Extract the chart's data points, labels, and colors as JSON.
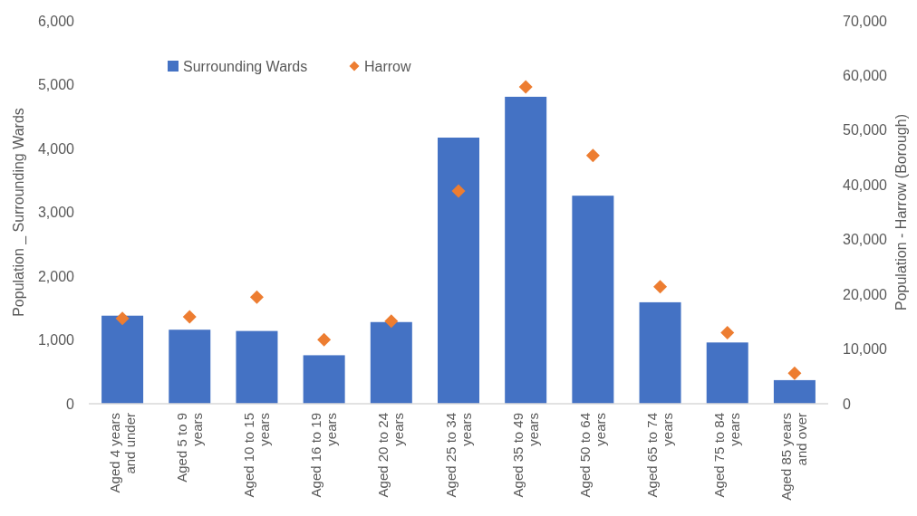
{
  "chart_data": {
    "type": "bar",
    "categories": [
      "Aged 4 years and under",
      "Aged 5 to 9 years",
      "Aged 10 to 15 years",
      "Aged 16 to 19 years",
      "Aged 20 to 24 years",
      "Aged 25 to 34 years",
      "Aged 35 to 49 years",
      "Aged 50 to 64 years",
      "Aged 65 to 74 years",
      "Aged 75 to 84 years",
      "Aged 85 years and over"
    ],
    "ylabel": "Population _ Surrounding Wards",
    "y2label": "Population - Harrow (Borough)",
    "ylim": [
      0,
      6000
    ],
    "yticks": [
      0,
      {
        "value": 1000,
        "label": "1,000"
      },
      {
        "value": 2000,
        "label": "2,000"
      },
      {
        "value": 3000,
        "label": "3,000"
      },
      {
        "value": 4000,
        "label": "4,000"
      },
      {
        "value": 5000,
        "label": "5,000"
      },
      {
        "value": 6000,
        "label": "6,000"
      }
    ],
    "y2lim": [
      0,
      70000
    ],
    "y2ticks": [
      0,
      {
        "value": 10000,
        "label": "10,000"
      },
      {
        "value": 20000,
        "label": "20,000"
      },
      {
        "value": 30000,
        "label": "30,000"
      },
      {
        "value": 40000,
        "label": "40,000"
      },
      {
        "value": 50000,
        "label": "50,000"
      },
      {
        "value": 60000,
        "label": "60,000"
      },
      {
        "value": 70000,
        "label": "70,000"
      }
    ],
    "series": [
      {
        "name": "Surrounding Wards",
        "color": "#4472c4",
        "values": [
          1380,
          1160,
          1140,
          760,
          1280,
          4170,
          4810,
          3260,
          1590,
          960,
          370
        ]
      },
      {
        "name": "Harrow",
        "type": "scatter",
        "axis": "y2",
        "marker": "diamond",
        "color": "#ed7d31",
        "values": [
          15600,
          15900,
          19500,
          11700,
          15100,
          38900,
          57900,
          45400,
          21400,
          13000,
          5600
        ]
      }
    ],
    "legend": "top",
    "grid": false
  }
}
